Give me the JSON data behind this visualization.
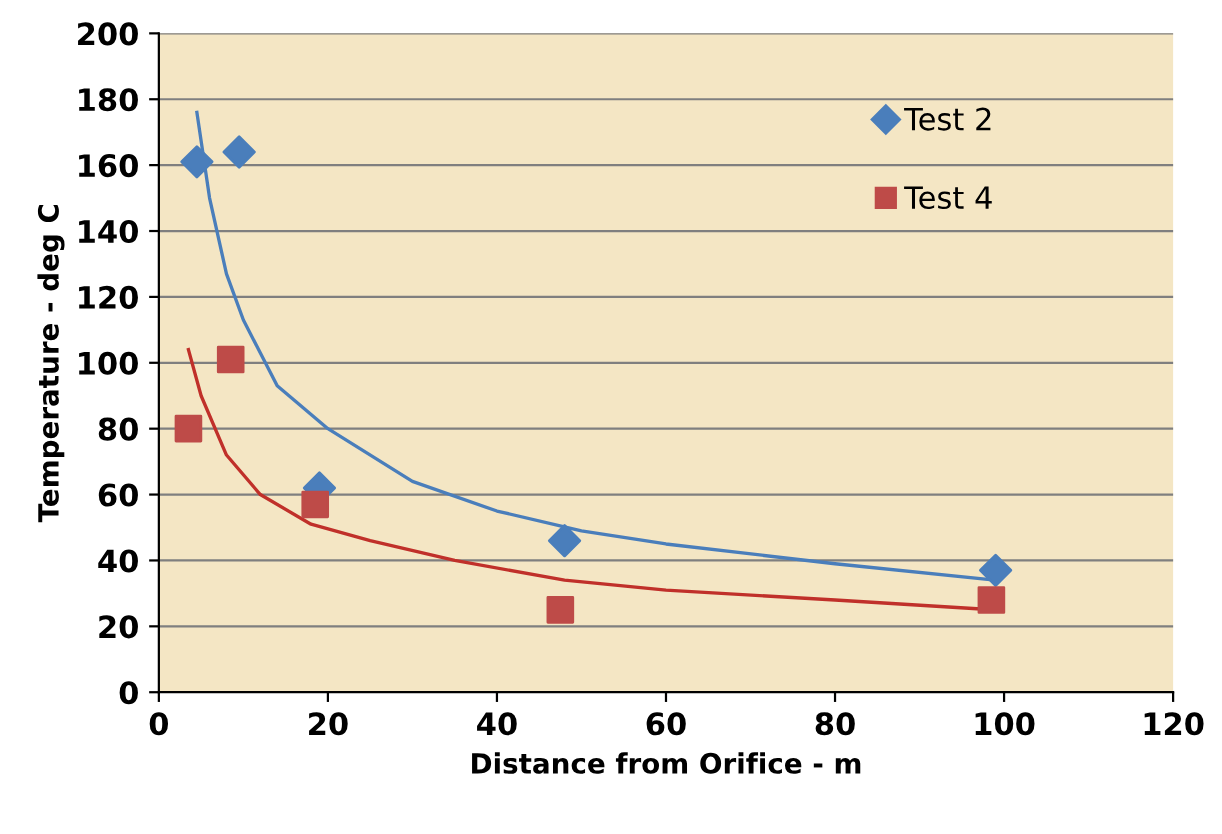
{
  "chart_data": {
    "type": "scatter",
    "xlabel": "Distance from Orifice - m",
    "ylabel": "Temperature - deg C",
    "xlim": [
      0,
      120
    ],
    "xticks": [
      0,
      20,
      40,
      60,
      80,
      100,
      120
    ],
    "ylim": [
      0,
      200
    ],
    "yticks": [
      0,
      20,
      40,
      60,
      80,
      100,
      120,
      140,
      160,
      180,
      200
    ],
    "grid": "y",
    "legend": "top right",
    "series": [
      {
        "name": "Test 2",
        "color": "#4a7ebb",
        "marker": "diamond",
        "x": [
          4.5,
          9.5,
          19,
          48,
          99
        ],
        "values": [
          161,
          164,
          62,
          46,
          37
        ]
      },
      {
        "name": "Test 4",
        "color": "#be4b48",
        "marker": "square",
        "x": [
          3.5,
          8.5,
          18.5,
          47.5,
          98.5
        ],
        "values": [
          80,
          101,
          57,
          25,
          28
        ]
      },
      {
        "type": "line",
        "color": "#4a7ebb",
        "marker": "none",
        "x": [
          4.5,
          6,
          8,
          10,
          14,
          20,
          30,
          40,
          50,
          60,
          80,
          99
        ],
        "values": [
          176,
          150,
          127,
          113,
          93,
          80,
          64,
          55,
          49,
          45,
          39,
          34
        ]
      },
      {
        "type": "line",
        "color": "#c0302a",
        "marker": "none",
        "x": [
          3.5,
          5,
          8,
          12,
          18,
          25,
          35,
          48,
          60,
          80,
          99
        ],
        "values": [
          104,
          90,
          72,
          60,
          51,
          46,
          40,
          34,
          31,
          28,
          25
        ]
      }
    ]
  }
}
